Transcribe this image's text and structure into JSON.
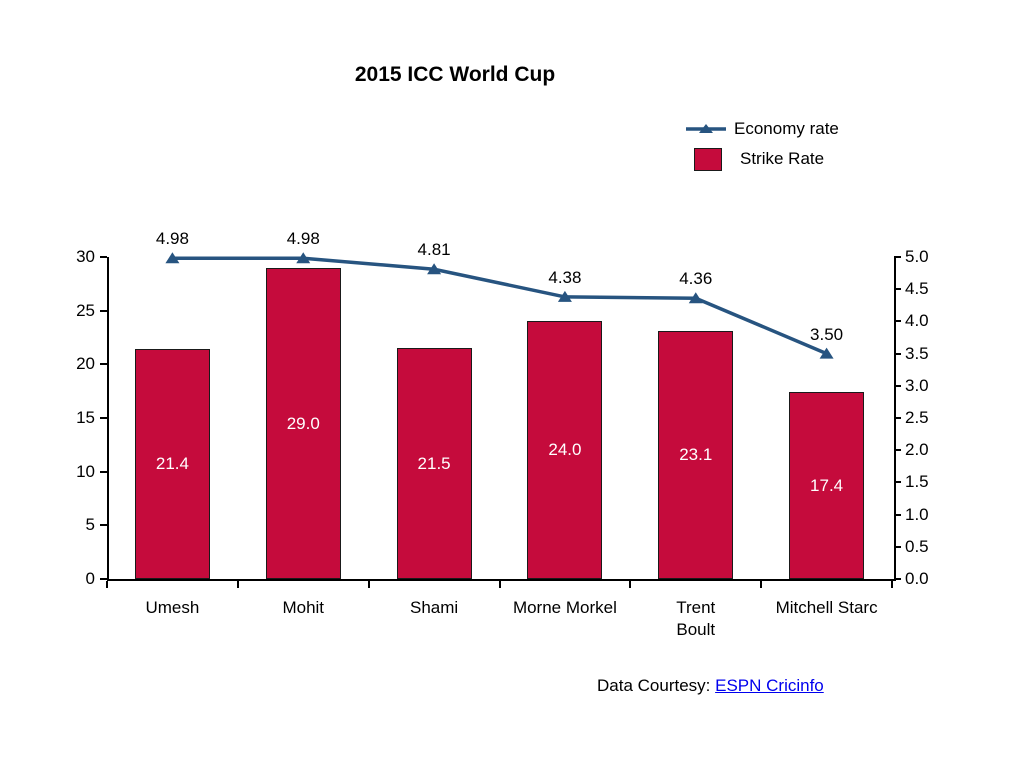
{
  "title": "2015 ICC World Cup",
  "legend": {
    "items": [
      {
        "label": "Economy rate",
        "marker": "line-triangle"
      },
      {
        "label": "Strike Rate",
        "marker": "square"
      }
    ]
  },
  "footer": {
    "label": "Data Courtesy: ",
    "link_text": "ESPN Cricinfo"
  },
  "colors": {
    "bar_fill": "#C50B3C",
    "bar_border": "#1A1A1A",
    "line_stroke": "#275480",
    "link_blue": "#0000EE",
    "axis_black": "#000000",
    "bar_label_white": "#FFFFFF"
  },
  "chart_data": {
    "type": "combo",
    "title": "2015 ICC World Cup",
    "categories": [
      "Umesh",
      "Mohit",
      "Shami",
      "Morne Morkel",
      "Trent Boult",
      "Mitchell Starc"
    ],
    "category_label_lines": [
      [
        "Umesh"
      ],
      [
        "Mohit"
      ],
      [
        "Shami"
      ],
      [
        "Morne Morkel"
      ],
      [
        "Trent",
        "Boult"
      ],
      [
        "Mitchell Starc"
      ]
    ],
    "series": [
      {
        "name": "Economy rate",
        "type": "line",
        "axis": "right",
        "color": "#275480",
        "values": [
          4.98,
          4.98,
          4.81,
          4.38,
          4.36,
          3.5
        ],
        "data_labels": [
          "4.98",
          "4.98",
          "4.81",
          "4.38",
          "4.36",
          "3.50"
        ]
      },
      {
        "name": "Strike Rate",
        "type": "bar",
        "axis": "left",
        "color": "#C50B3C",
        "values": [
          21.4,
          29.0,
          21.5,
          24.0,
          23.1,
          17.4
        ],
        "data_labels": [
          "21.4",
          "29.0",
          "21.5",
          "24.0",
          "23.1",
          "17.4"
        ]
      }
    ],
    "left_axis": {
      "min": 0,
      "max": 30,
      "tick_interval": 5,
      "tick_labels": [
        "0",
        "5",
        "10",
        "15",
        "20",
        "25",
        "30"
      ]
    },
    "right_axis": {
      "min": 0.0,
      "max": 5.0,
      "tick_interval": 0.5,
      "tick_labels": [
        "0.0",
        "0.5",
        "1.0",
        "1.5",
        "2.0",
        "2.5",
        "3.0",
        "3.5",
        "4.0",
        "4.5",
        "5.0"
      ]
    },
    "grid": false,
    "legend_position": "top-right",
    "data_labels_on": true
  }
}
